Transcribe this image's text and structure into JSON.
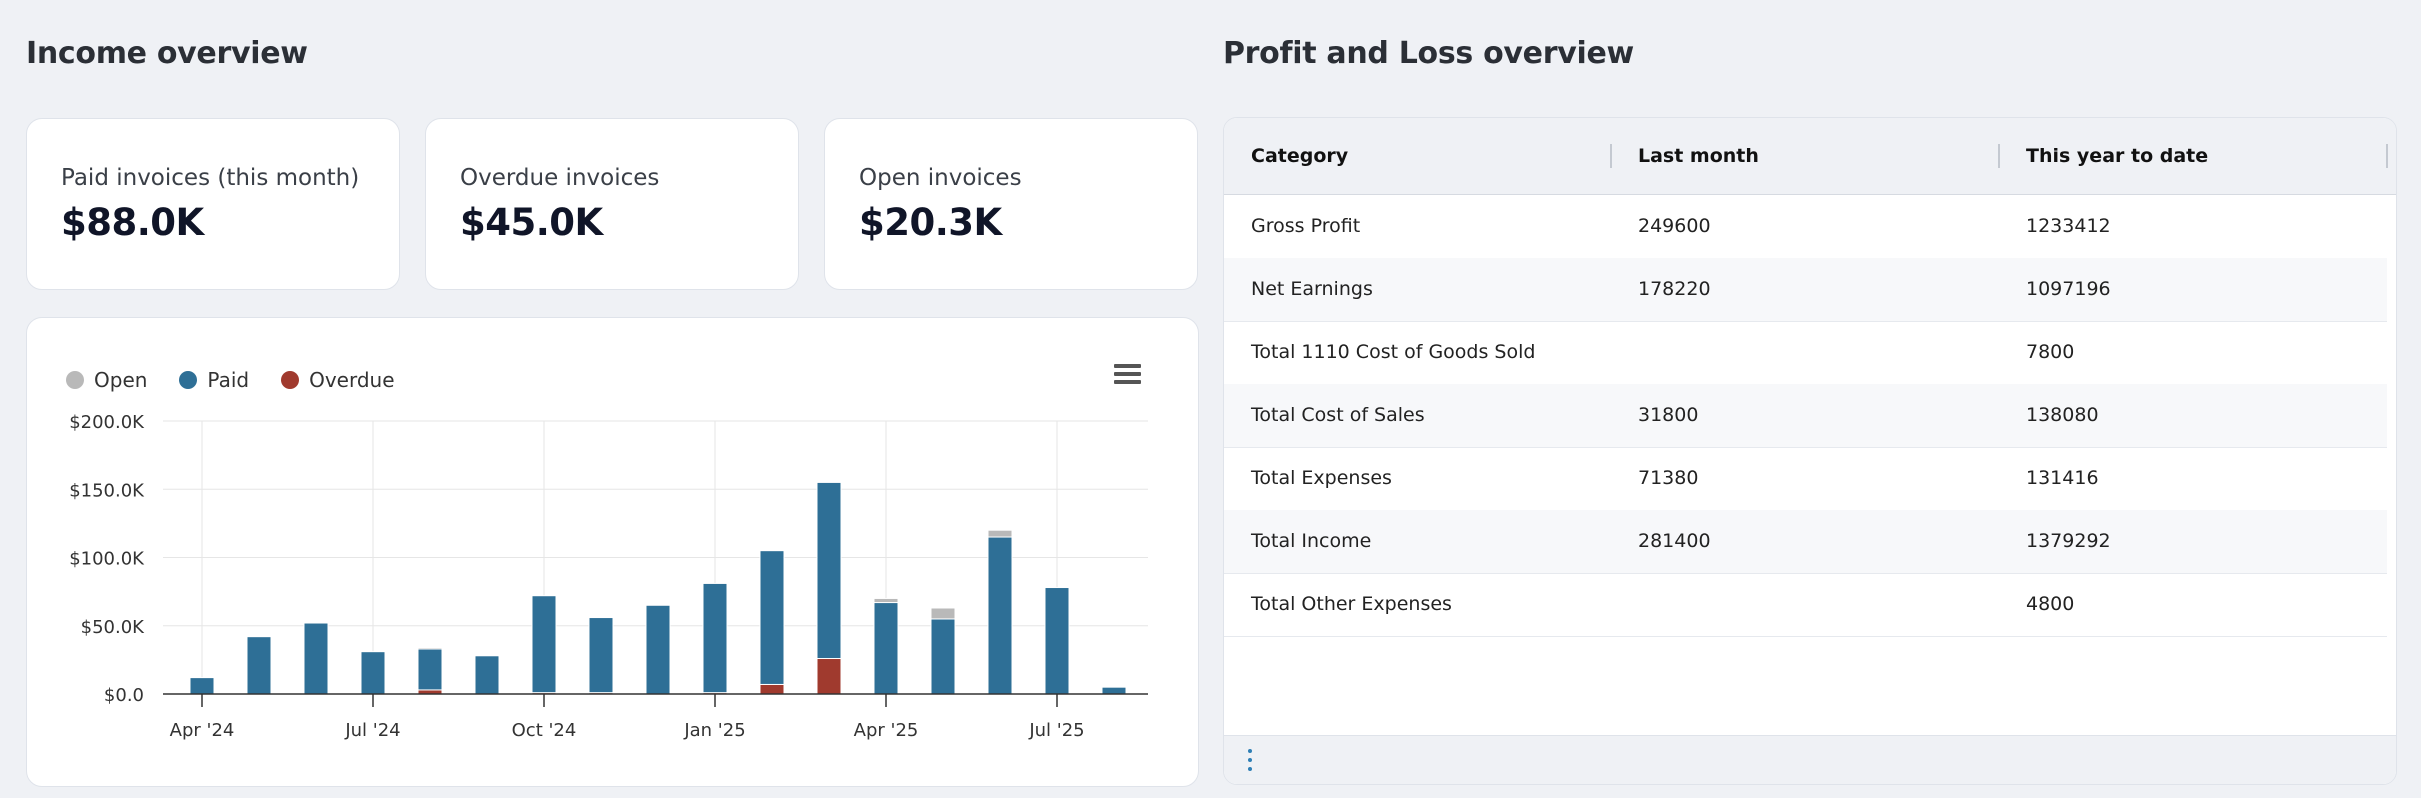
{
  "income": {
    "title": "Income overview",
    "kpis": [
      {
        "label": "Paid invoices (this month)",
        "value": "$88.0K"
      },
      {
        "label": "Overdue invoices",
        "value": "$45.0K"
      },
      {
        "label": "Open invoices",
        "value": "$20.3K"
      }
    ],
    "legend": [
      {
        "label": "Open",
        "color": "#b9b9b9"
      },
      {
        "label": "Paid",
        "color": "#2e6f96"
      },
      {
        "label": "Overdue",
        "color": "#a03a2e"
      }
    ],
    "menu_icon": "hamburger-menu-icon"
  },
  "chart_data": {
    "type": "bar",
    "stacked": true,
    "categories": [
      "Apr '24",
      "May '24",
      "Jun '24",
      "Jul '24",
      "Aug '24",
      "Sep '24",
      "Oct '24",
      "Nov '24",
      "Dec '24",
      "Jan '25",
      "Feb '25",
      "Mar '25",
      "Apr '25",
      "May '25",
      "Jun '25",
      "Jul '25",
      "Aug '25"
    ],
    "x_tick_labels": [
      "Apr '24",
      "Jul '24",
      "Oct '24",
      "Jan '25",
      "Apr '25",
      "Jul '25"
    ],
    "y_tick_labels": [
      "$0.0",
      "$50.0K",
      "$100.0K",
      "$150.0K",
      "$200.0K"
    ],
    "ylim": [
      0,
      200000
    ],
    "grid": true,
    "legend_position": "top-left",
    "series": [
      {
        "name": "Overdue",
        "color": "#a03a2e",
        "values": [
          0,
          0,
          0,
          0,
          3000,
          0,
          1000,
          1000,
          0,
          1000,
          7000,
          26000,
          0,
          0,
          0,
          0,
          0
        ]
      },
      {
        "name": "Paid",
        "color": "#2e6f96",
        "values": [
          12000,
          42000,
          52000,
          31000,
          30000,
          28000,
          71000,
          55000,
          65000,
          80000,
          98000,
          129000,
          67000,
          55000,
          115000,
          78000,
          5000
        ]
      },
      {
        "name": "Open",
        "color": "#b9b9b9",
        "values": [
          0,
          0,
          0,
          0,
          1000,
          0,
          0,
          0,
          0,
          0,
          0,
          0,
          3000,
          8000,
          5000,
          0,
          0
        ]
      }
    ]
  },
  "pl": {
    "title": "Profit and Loss overview",
    "columns": [
      "Category",
      "Last month",
      "This year to date"
    ],
    "rows": [
      {
        "category": "Gross Profit",
        "last_month": "249600",
        "ytd": "1233412"
      },
      {
        "category": "Net Earnings",
        "last_month": "178220",
        "ytd": "1097196"
      },
      {
        "category": "Total 1110 Cost of Goods Sold",
        "last_month": "",
        "ytd": "7800"
      },
      {
        "category": "Total Cost of Sales",
        "last_month": "31800",
        "ytd": "138080"
      },
      {
        "category": "Total Expenses",
        "last_month": "71380",
        "ytd": "131416"
      },
      {
        "category": "Total Income",
        "last_month": "281400",
        "ytd": "1379292"
      },
      {
        "category": "Total Other Expenses",
        "last_month": "",
        "ytd": "4800"
      }
    ],
    "footer_icon": "more-vertical-icon"
  }
}
